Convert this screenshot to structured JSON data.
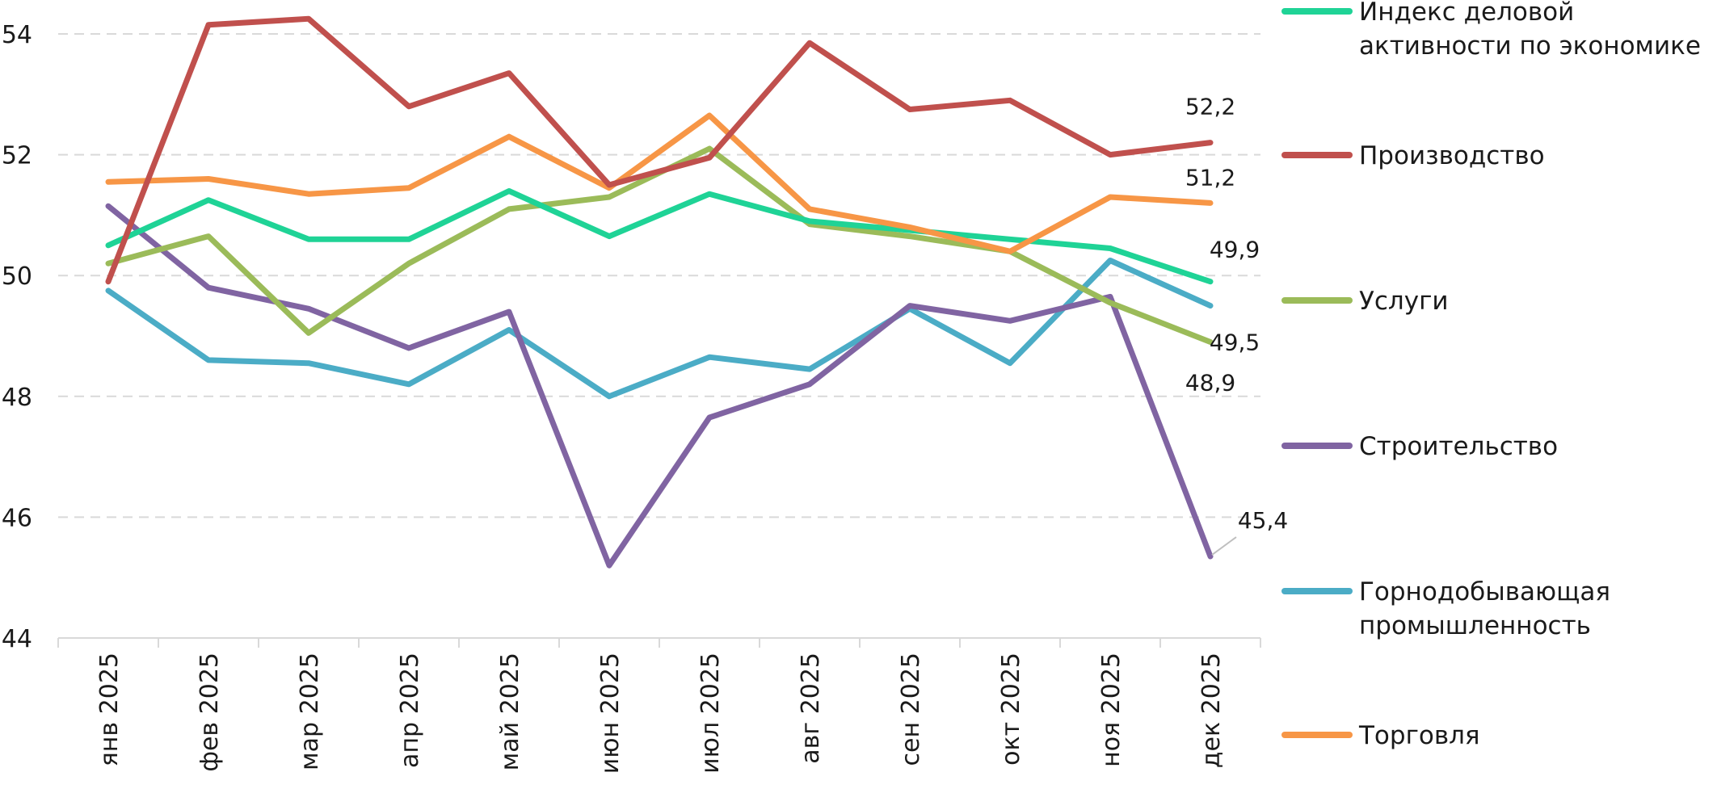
{
  "chart_data": {
    "type": "line",
    "title": "",
    "xlabel": "",
    "ylabel": "",
    "ylim": [
      44,
      54
    ],
    "yticks": [
      "44",
      "46",
      "48",
      "50",
      "52",
      "54"
    ],
    "grid": true,
    "legend_position": "right",
    "categories": [
      "янв 2025",
      "фев 2025",
      "мар 2025",
      "апр 2025",
      "май 2025",
      "июн 2025",
      "июл 2025",
      "авг 2025",
      "сен 2025",
      "окт 2025",
      "ноя 2025",
      "дек 2025"
    ],
    "series": [
      {
        "name": "Индекс деловой активности по экономике",
        "legend_lines": [
          "Индекс деловой",
          "активности по экономике"
        ],
        "color": "#1fd396",
        "values": [
          50.5,
          51.25,
          50.6,
          50.6,
          51.4,
          50.65,
          51.35,
          50.9,
          50.75,
          50.6,
          50.45,
          49.9
        ],
        "end_label": "49,9"
      },
      {
        "name": "Производство",
        "legend_lines": [
          "Производство"
        ],
        "color": "#c0504d",
        "values": [
          49.9,
          54.15,
          54.25,
          52.8,
          53.35,
          51.5,
          51.95,
          53.85,
          52.75,
          52.9,
          52.0,
          52.2
        ],
        "end_label": "52,2"
      },
      {
        "name": "Услуги",
        "legend_lines": [
          "Услуги"
        ],
        "color": "#9bbb59",
        "values": [
          50.2,
          50.65,
          49.05,
          50.2,
          51.1,
          51.3,
          52.1,
          50.85,
          50.65,
          50.4,
          49.55,
          48.9
        ],
        "end_label": "48,9"
      },
      {
        "name": "Строительство",
        "legend_lines": [
          "Строительство"
        ],
        "color": "#8064a2",
        "values": [
          51.15,
          49.8,
          49.45,
          48.8,
          49.4,
          45.2,
          47.65,
          48.2,
          49.5,
          49.25,
          49.65,
          45.35
        ],
        "end_label": "45,4"
      },
      {
        "name": "Горнодобывающая промышленность",
        "legend_lines": [
          "Горнодобывающая",
          "промышленность"
        ],
        "color": "#4bacc6",
        "values": [
          49.75,
          48.6,
          48.55,
          48.2,
          49.1,
          48.0,
          48.65,
          48.45,
          49.45,
          48.55,
          50.25,
          49.5
        ],
        "end_label": "49,5"
      },
      {
        "name": "Торговля",
        "legend_lines": [
          "Торговля"
        ],
        "color": "#f79646",
        "values": [
          51.55,
          51.6,
          51.35,
          51.45,
          52.3,
          51.45,
          52.65,
          51.1,
          50.8,
          50.4,
          51.3,
          51.2
        ],
        "end_label": "51,2"
      }
    ]
  }
}
